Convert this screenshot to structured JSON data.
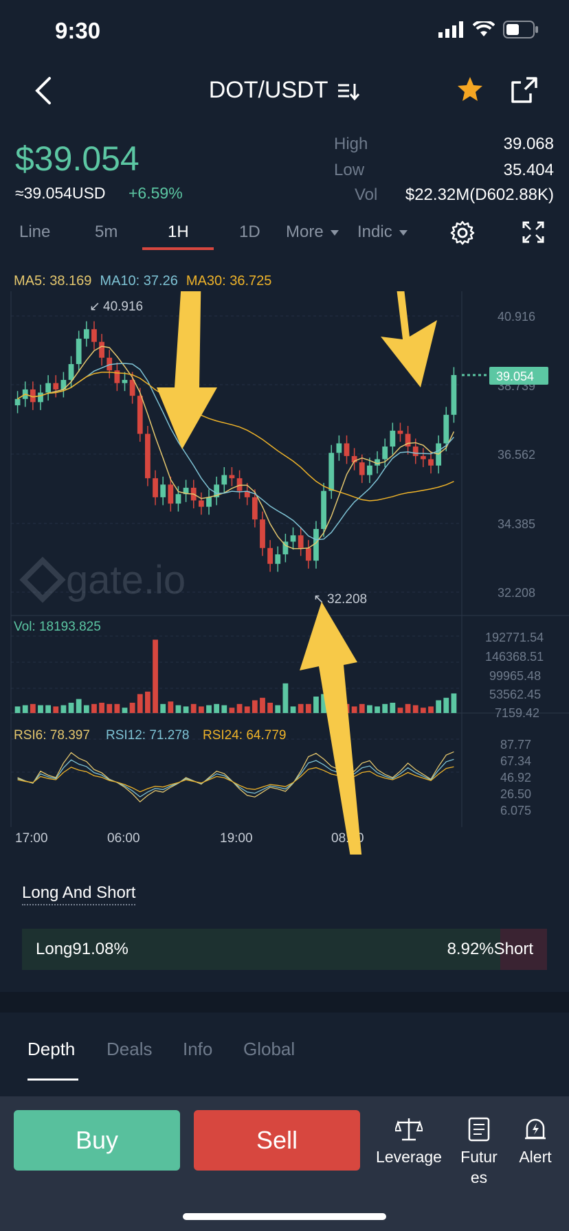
{
  "status_bar": {
    "time": "9:30"
  },
  "header": {
    "title": "DOT/USDT"
  },
  "price": {
    "last": "$39.054",
    "usd_equiv": "≈39.054USD",
    "change": "+6.59%",
    "high_label": "High",
    "high": "39.068",
    "low_label": "Low",
    "low": "35.404",
    "vol_label": "Vol",
    "vol": "$22.32M(D602.88K)"
  },
  "interval_tabs": {
    "line": "Line",
    "m5": "5m",
    "h1": "1H",
    "d1": "1D",
    "more": "More",
    "indic": "Indic",
    "active": "1H"
  },
  "indicators": {
    "ma5": "MA5: 38.169",
    "ma10": "MA10: 37.26",
    "ma30": "MA30: 36.725",
    "vol": "Vol: 18193.825",
    "rsi6": "RSI6: 78.397",
    "rsi12": "RSI12: 71.278",
    "rsi24": "RSI24: 64.779",
    "ma5_color": "#e6c86e",
    "ma10_color": "#7fc4d6",
    "ma30_color": "#f0b429"
  },
  "chart_data": {
    "type": "candlestick",
    "price_axis": [
      "40.916",
      "38.739",
      "36.562",
      "34.385",
      "32.208"
    ],
    "price_range": [
      32.208,
      40.916
    ],
    "high_marker": "40.916",
    "low_marker": "32.208",
    "current_price": "39.054",
    "volume_axis": [
      "192771.54",
      "146368.51",
      "99965.48",
      "53562.45",
      "7159.42"
    ],
    "rsi_axis": [
      "87.77",
      "67.34",
      "46.92",
      "26.50",
      "6.075"
    ],
    "time_axis": [
      "17:00",
      "06:00",
      "19:00",
      "08:00"
    ],
    "watermark": "gate.io",
    "close_values": [
      38.3,
      38.6,
      38.2,
      38.5,
      38.8,
      38.6,
      38.9,
      39.4,
      40.2,
      40.5,
      40.1,
      39.6,
      39.2,
      38.8,
      38.9,
      38.4,
      37.2,
      35.8,
      35.2,
      35.6,
      35.0,
      35.3,
      35.5,
      35.1,
      34.9,
      35.2,
      35.6,
      35.9,
      35.8,
      35.4,
      35.2,
      34.5,
      33.6,
      33.1,
      33.4,
      33.8,
      34.0,
      33.6,
      33.2,
      34.2,
      35.4,
      36.6,
      36.9,
      36.5,
      36.3,
      35.9,
      36.2,
      36.4,
      36.8,
      37.3,
      37.2,
      36.8,
      36.5,
      36.4,
      36.2,
      36.9,
      37.8,
      39.054
    ],
    "rsi_values": [
      52,
      48,
      45,
      60,
      55,
      52,
      70,
      83,
      76,
      72,
      62,
      58,
      50,
      46,
      40,
      32,
      22,
      30,
      36,
      34,
      40,
      45,
      52,
      48,
      44,
      52,
      60,
      57,
      48,
      38,
      30,
      28,
      34,
      40,
      38,
      35,
      45,
      60,
      78,
      82,
      75,
      66,
      62,
      58,
      60,
      70,
      73,
      62,
      56,
      52,
      60,
      70,
      62,
      56,
      50,
      66,
      80,
      84
    ]
  },
  "long_short": {
    "title": "Long And Short",
    "long": "Long91.08%",
    "short": "8.92%Short",
    "long_pct": 91.08
  },
  "bottom_tabs": {
    "depth": "Depth",
    "deals": "Deals",
    "info": "Info",
    "global": "Global"
  },
  "actions": {
    "buy": "Buy",
    "sell": "Sell",
    "leverage": "Leverage",
    "futures": "Futur es",
    "alert": "Alert"
  }
}
